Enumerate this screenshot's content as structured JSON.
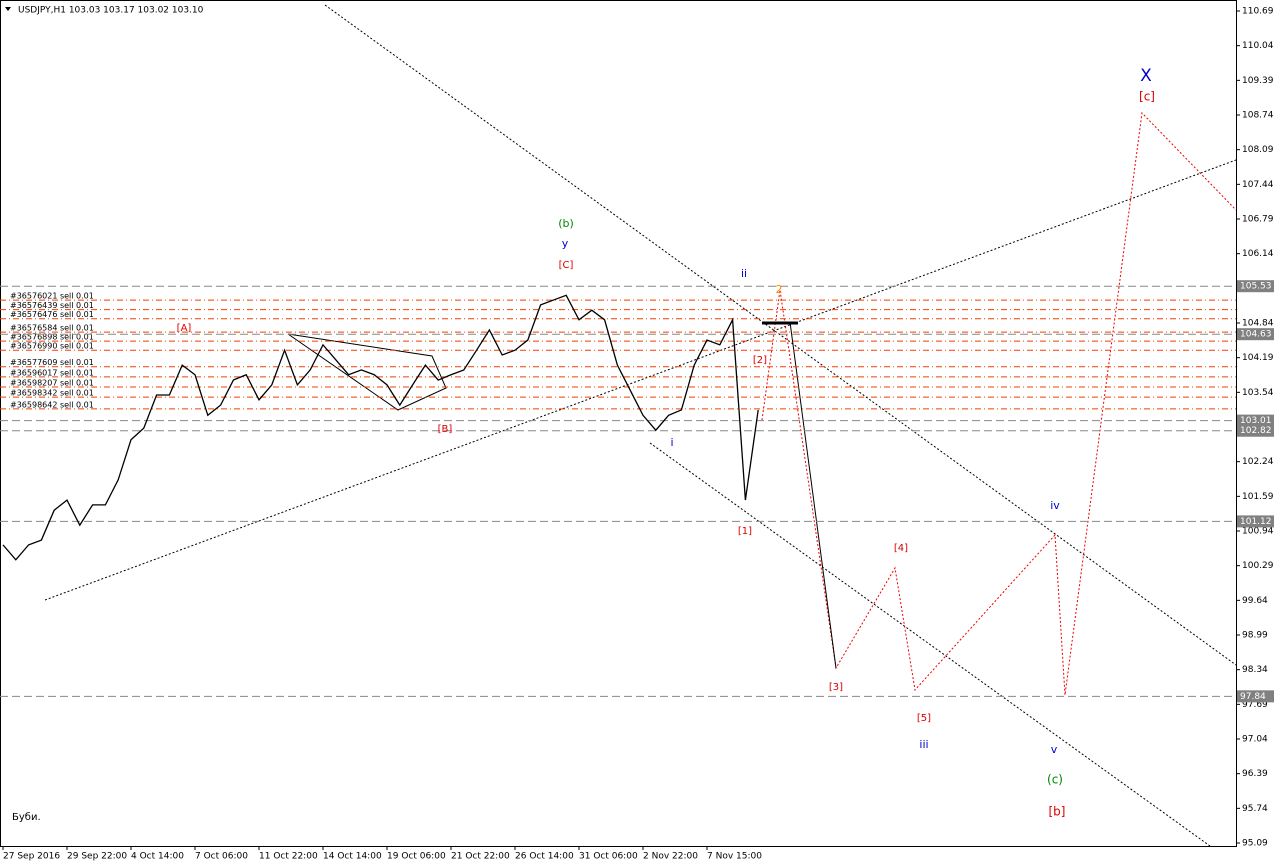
{
  "chart_data": {
    "type": "line",
    "title": "USDJPY,H1  103.03 103.17 103.02 103.10",
    "note": "Буби.",
    "categories": [
      "27 Sep 2016",
      null,
      null,
      null,
      null,
      "29 Sep 22:00",
      null,
      null,
      null,
      null,
      "4 Oct 14:00",
      null,
      null,
      null,
      null,
      "7 Oct 06:00",
      null,
      null,
      null,
      null,
      "11 Oct 22:00",
      null,
      null,
      null,
      null,
      "14 Oct 14:00",
      null,
      null,
      null,
      null,
      "19 Oct 06:00",
      null,
      null,
      null,
      null,
      "21 Oct 22:00",
      null,
      null,
      null,
      null,
      "26 Oct 14:00",
      null,
      null,
      null,
      null,
      "31 Oct 06:00",
      null,
      null,
      null,
      null,
      "2 Nov 22:00",
      null,
      null,
      null,
      null,
      "7 Nov 15:00",
      null,
      null,
      null,
      null,
      null,
      null,
      null,
      null,
      null,
      null,
      null,
      null,
      null,
      null,
      null,
      null,
      null,
      null,
      null,
      null,
      null,
      null,
      null,
      null,
      null,
      null,
      null,
      null,
      null,
      null,
      null,
      null,
      null,
      null,
      null,
      null,
      null,
      null,
      null,
      null,
      null
    ],
    "series": [
      {
        "name": "USDJPY",
        "color": "#000000",
        "values": [
          100.68,
          100.4,
          100.68,
          100.77,
          101.33,
          101.52,
          101.05,
          101.43,
          101.43,
          101.9,
          102.65,
          102.87,
          103.49,
          103.49,
          104.05,
          103.87,
          103.11,
          103.3,
          103.77,
          103.87,
          103.4,
          103.68,
          104.33,
          103.68,
          103.96,
          104.43,
          104.15,
          103.87,
          103.96,
          103.87,
          103.68,
          103.3,
          103.68,
          104.05,
          103.77,
          103.87,
          103.96,
          104.33,
          104.71,
          104.24,
          104.33,
          104.52,
          105.18,
          105.27,
          105.36,
          104.9,
          105.08,
          104.9,
          104.05,
          103.58,
          103.11,
          102.83,
          103.11,
          103.21,
          104.05,
          104.52,
          104.43,
          104.9,
          101.52,
          103.21,
          null,
          null,
          null,
          null,
          null,
          null,
          null,
          null,
          null,
          null,
          null,
          null,
          null,
          null,
          null,
          null,
          null,
          null,
          null,
          null,
          null,
          null,
          null,
          null,
          null,
          null,
          null,
          null,
          null,
          null,
          null,
          null,
          null,
          null,
          null,
          null,
          null
        ]
      }
    ],
    "ylim": [
      95.09,
      110.69
    ],
    "yticks": [
      110.69,
      110.04,
      109.39,
      108.74,
      108.09,
      107.44,
      106.79,
      106.14,
      104.84,
      104.19,
      103.54,
      102.24,
      101.59,
      100.94,
      100.29,
      99.64,
      98.99,
      98.34,
      97.69,
      97.04,
      96.39,
      95.74,
      95.09
    ],
    "levels": [
      105.53,
      104.63,
      103.01,
      102.82,
      101.12,
      97.84
    ],
    "orders": [
      {
        "text": "#36576021 sell 0.01",
        "price": 105.27
      },
      {
        "text": "#36576439 sell 0.01",
        "price": 105.09
      },
      {
        "text": "#36576476 sell 0.01",
        "price": 104.92
      },
      {
        "text": "#36576584 sell 0.01",
        "price": 104.67
      },
      {
        "text": "#36576898 sell 0.01",
        "price": 104.5
      },
      {
        "text": "#36576990 sell 0.01",
        "price": 104.33
      },
      {
        "text": "#36577609 sell 0.01",
        "price": 104.02
      },
      {
        "text": "#36596017 sell 0.01",
        "price": 103.83
      },
      {
        "text": "#36598207 sell 0.01",
        "price": 103.64
      },
      {
        "text": "#36598342 sell 0.01",
        "price": 103.45
      },
      {
        "text": "#36598642 sell 0.01",
        "price": 103.23
      }
    ],
    "wave_labels": [
      "(b)",
      "y",
      "[C]",
      "[A]",
      "[B]",
      "i",
      "ii",
      "2",
      "[2]",
      "[1]",
      "[3]",
      "[4]",
      "[5]",
      "iii",
      "iv",
      "v",
      "(c)",
      "[b]",
      "X",
      "[c]"
    ]
  }
}
